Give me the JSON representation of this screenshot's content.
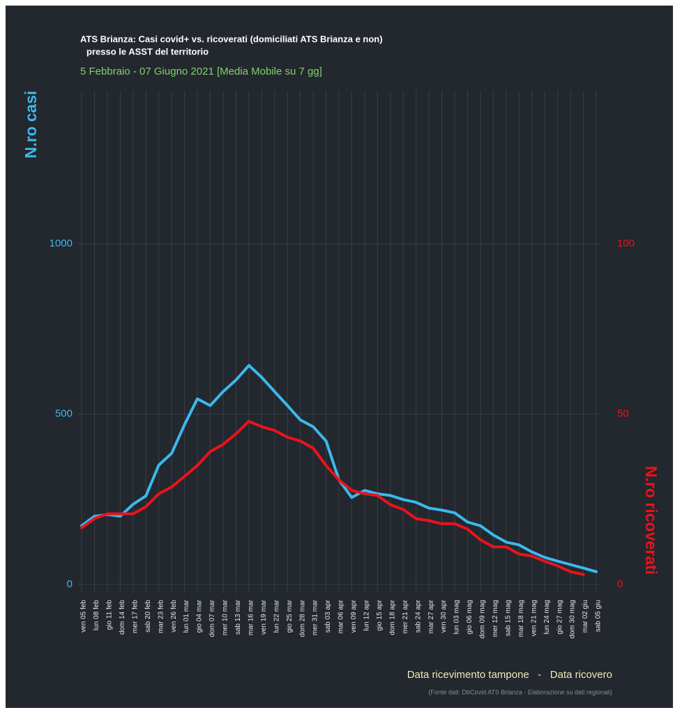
{
  "chart_data": {
    "type": "line",
    "title": [
      "ATS Brianza: Casi covid+ vs. ricoverati (domiciliati ATS Brianza e non)",
      "presso le ASST del territorio"
    ],
    "subtitle": "5 Febbraio - 07 Giugno 2021 [Media Mobile su 7 gg]",
    "ylabel": "N.ro casi",
    "y2label": "N.ro ricoverati",
    "xlabel": "Data ricevimento tampone   -   Data ricovero",
    "source": "(Fonte dati: DbCovid ATS Brianza - Elaborazione su dati regionali)",
    "categories": [
      "ven 05 feb",
      "lun 08 feb",
      "gio 11 feb",
      "dom 14 feb",
      "mer 17 feb",
      "sab 20 feb",
      "mar 23 feb",
      "ven 26 feb",
      "lun 01 mar",
      "gio 04 mar",
      "dom 07 mar",
      "mer 10 mar",
      "sab 13 mar",
      "mar 16 mar",
      "ven 19 mar",
      "lun 22 mar",
      "gio 25 mar",
      "dom 28 mar",
      "mer 31 mar",
      "sab 03 apr",
      "mar 06 apr",
      "ven 09 apr",
      "lun 12 apr",
      "gio 15 apr",
      "dom 18 apr",
      "mer 21 apr",
      "sab 24 apr",
      "mar 27 apr",
      "ven 30 apr",
      "lun 03 mag",
      "gio 06 mag",
      "dom 09 mag",
      "mer 12 mag",
      "sab 15 mag",
      "mar 18 mag",
      "ven 21 mag",
      "lun 24 mag",
      "gio 27 mag",
      "dom 30 mag",
      "mar 02 giu",
      "sab 05 giu"
    ],
    "series": [
      {
        "color": "#3cb8ec",
        "values": [
          172,
          200,
          205,
          200,
          235,
          260,
          350,
          385,
          469,
          545,
          525,
          566,
          600,
          643,
          608,
          566,
          525,
          483,
          463,
          421,
          307,
          255,
          276,
          266,
          261,
          249,
          241,
          224,
          218,
          210,
          183,
          172,
          145,
          124,
          116,
          95,
          79,
          68,
          58,
          48,
          37
        ]
      },
      {
        "color": "#e8141c",
        "axis": "y2",
        "values": [
          16.6,
          19.3,
          20.7,
          20.7,
          20.7,
          22.8,
          26.6,
          28.6,
          31.7,
          34.9,
          39.0,
          41.1,
          44.2,
          47.9,
          46.3,
          45.2,
          43.2,
          42.1,
          40.0,
          34.9,
          30.7,
          27.6,
          26.6,
          26.1,
          23.4,
          22.0,
          19.3,
          18.7,
          17.8,
          17.8,
          16.2,
          13.1,
          11.0,
          11.0,
          8.9,
          8.3,
          6.8,
          5.4,
          3.7,
          2.9,
          null
        ]
      }
    ],
    "ylim": [
      -25,
      1450
    ],
    "yticks": [
      0,
      500,
      1000
    ],
    "y2lim": [
      -2.5,
      145
    ],
    "y2ticks": [
      0,
      50,
      100
    ],
    "grid": true
  }
}
